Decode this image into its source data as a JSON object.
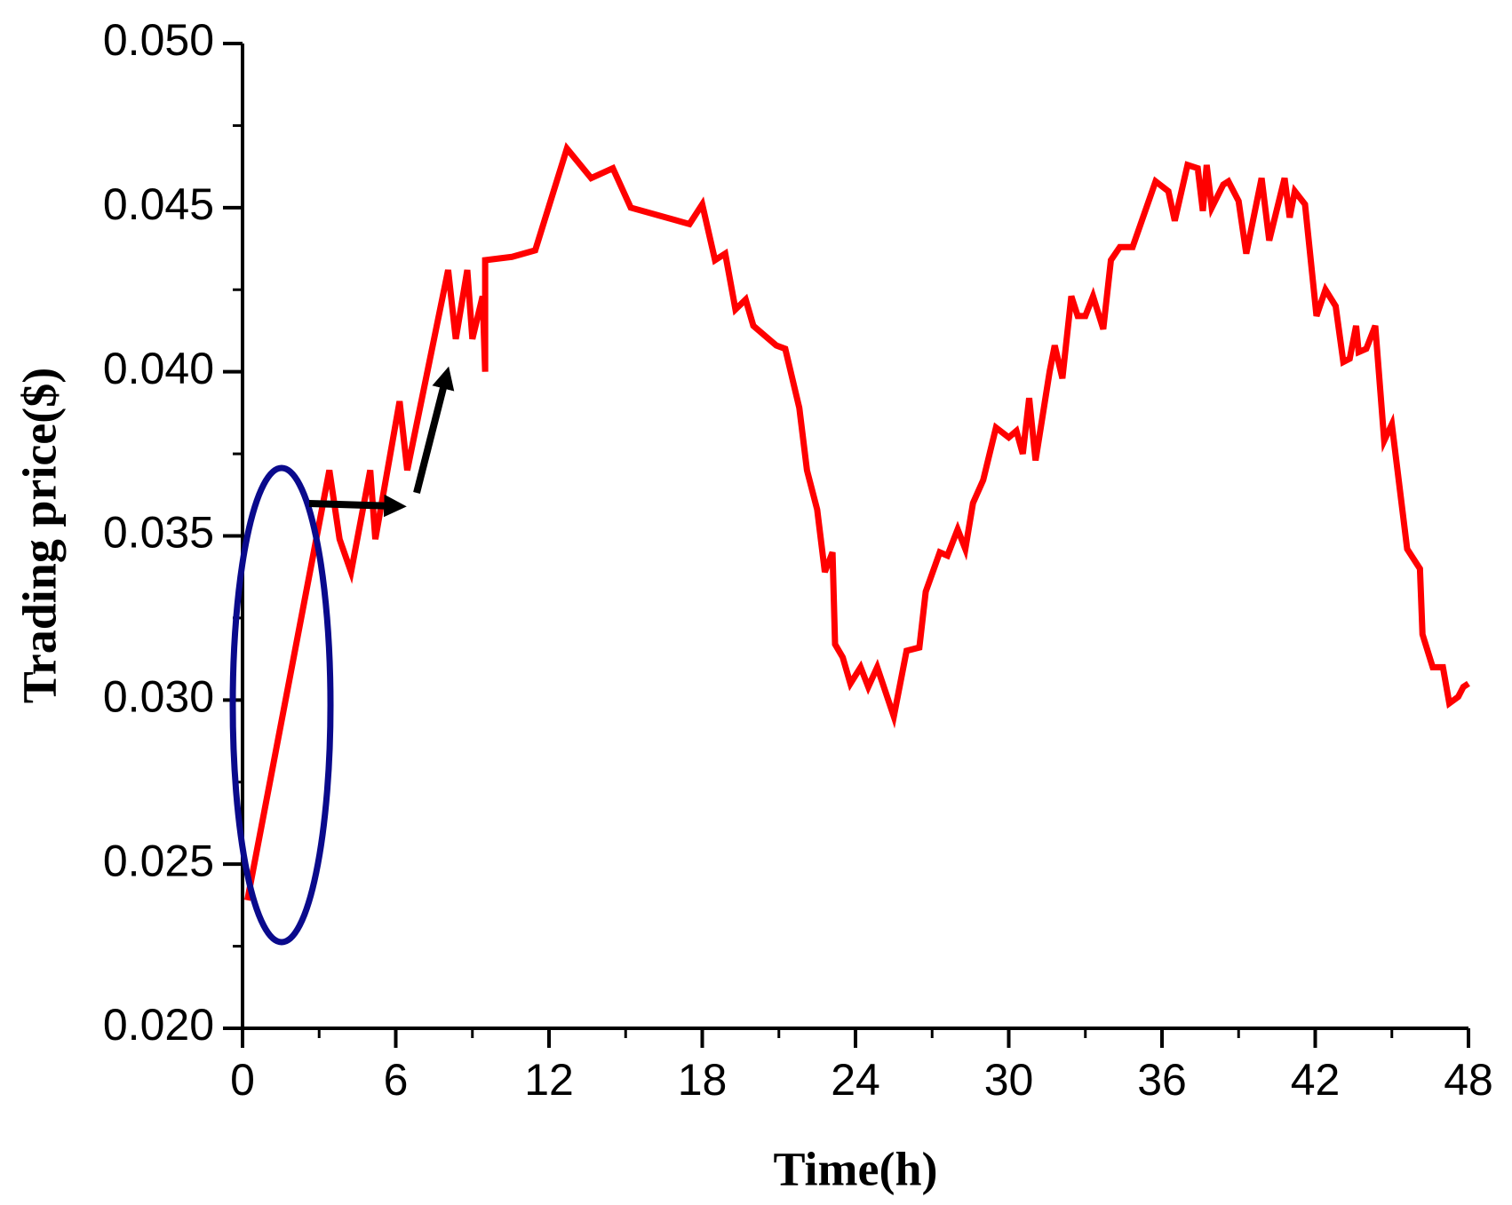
{
  "chart_data": {
    "type": "line",
    "x_label": "Time(h)",
    "y_label": "Trading price($)",
    "xlim": [
      0,
      48
    ],
    "xticks": [
      0,
      6,
      12,
      18,
      24,
      30,
      36,
      42,
      48
    ],
    "ylim": [
      0.02,
      0.05
    ],
    "yticks": [
      {
        "value": 0.02,
        "label": "0.020"
      },
      {
        "value": 0.025,
        "label": "0.025"
      },
      {
        "value": 0.03,
        "label": "0.030"
      },
      {
        "value": 0.035,
        "label": "0.035"
      },
      {
        "value": 0.04,
        "label": "0.040"
      },
      {
        "value": 0.045,
        "label": "0.045"
      },
      {
        "value": 0.05,
        "label": "0.050"
      }
    ],
    "series": [
      {
        "color": "#ff0000",
        "x": [
          0.19,
          3.4,
          3.8,
          4.25,
          5.0,
          5.2,
          6.15,
          6.45,
          8.05,
          8.35,
          8.8,
          9.0,
          9.4,
          9.5,
          9.5,
          10.55,
          11.46,
          12.7,
          13.65,
          14.5,
          15.2,
          17.5,
          18.0,
          18.5,
          18.9,
          19.3,
          19.7,
          20.0,
          20.9,
          21.25,
          21.8,
          22.1,
          22.5,
          22.8,
          23.1,
          23.2,
          23.5,
          23.8,
          24.2,
          24.5,
          24.85,
          25.5,
          26.0,
          26.5,
          26.75,
          27.3,
          27.6,
          28.0,
          28.3,
          28.6,
          29.0,
          29.5,
          30.0,
          30.3,
          30.55,
          30.8,
          31.05,
          31.6,
          31.8,
          32.1,
          32.45,
          32.7,
          33.0,
          33.3,
          33.7,
          34.0,
          34.35,
          34.85,
          35.75,
          36.25,
          36.5,
          37.0,
          37.4,
          37.6,
          37.75,
          37.95,
          38.4,
          38.6,
          39.0,
          39.3,
          39.9,
          40.2,
          40.8,
          41.0,
          41.2,
          41.6,
          42.05,
          42.4,
          42.8,
          43.1,
          43.35,
          43.6,
          43.7,
          44.0,
          44.35,
          44.7,
          45.0,
          45.6,
          46.1,
          46.2,
          46.6,
          47.0,
          47.25,
          47.6,
          47.8,
          48.0
        ],
        "values": [
          0.0239,
          0.037,
          0.0349,
          0.0339,
          0.037,
          0.0349,
          0.0391,
          0.037,
          0.0431,
          0.041,
          0.0431,
          0.041,
          0.0423,
          0.04,
          0.0434,
          0.0435,
          0.0437,
          0.0468,
          0.0459,
          0.0462,
          0.045,
          0.0445,
          0.0451,
          0.0434,
          0.0436,
          0.0419,
          0.0422,
          0.0414,
          0.0408,
          0.0407,
          0.0389,
          0.037,
          0.0358,
          0.0339,
          0.0345,
          0.0317,
          0.0313,
          0.0305,
          0.031,
          0.0304,
          0.031,
          0.0295,
          0.0315,
          0.0316,
          0.0333,
          0.0345,
          0.0344,
          0.0352,
          0.0346,
          0.036,
          0.0367,
          0.0383,
          0.038,
          0.0382,
          0.0375,
          0.0392,
          0.0373,
          0.04,
          0.0408,
          0.0398,
          0.0423,
          0.0417,
          0.0417,
          0.0423,
          0.0413,
          0.0434,
          0.0438,
          0.0438,
          0.0458,
          0.0455,
          0.0446,
          0.0463,
          0.0462,
          0.0449,
          0.0463,
          0.045,
          0.0457,
          0.0458,
          0.0452,
          0.0436,
          0.0459,
          0.044,
          0.0459,
          0.0447,
          0.0455,
          0.0451,
          0.0417,
          0.0425,
          0.042,
          0.0403,
          0.0404,
          0.0414,
          0.0406,
          0.0407,
          0.0414,
          0.0379,
          0.0384,
          0.0346,
          0.034,
          0.032,
          0.031,
          0.031,
          0.0299,
          0.0301,
          0.0304,
          0.0305
        ]
      }
    ]
  }
}
